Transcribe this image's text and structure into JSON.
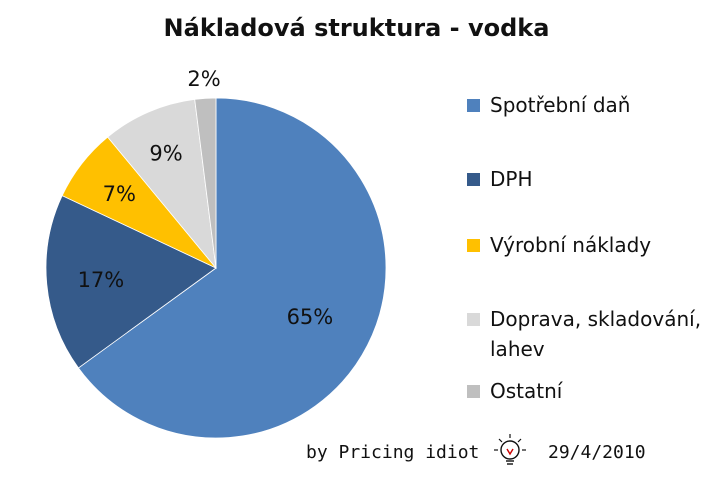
{
  "chart_data": {
    "type": "pie",
    "title": "Nákladová struktura - vodka",
    "slices": [
      {
        "name": "Spotřební daň",
        "value": 65,
        "label": "65%",
        "color": "#4F81BD"
      },
      {
        "name": "DPH",
        "value": 17,
        "label": "17%",
        "color": "#355A8A"
      },
      {
        "name": "Výrobní náklady",
        "value": 7,
        "label": "7%",
        "color": "#FFC000"
      },
      {
        "name": "Doprava, skladování, lahev",
        "value": 9,
        "label": "9%",
        "color": "#D9D9D9"
      },
      {
        "name": "Ostatní",
        "value": 2,
        "label": "2%",
        "color": "#BFBFBF"
      }
    ],
    "legend_position": "right"
  },
  "signature": {
    "author": "by Pricing idiot",
    "date": "29/4/2010",
    "logo_icon": "lightbulb-logo-icon"
  }
}
